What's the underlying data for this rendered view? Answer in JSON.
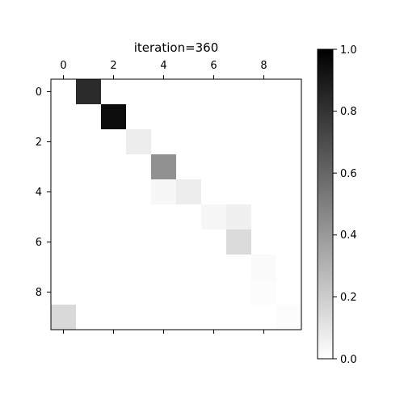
{
  "chart_data": [
    {
      "type": "heatmap",
      "title": "iteration=360",
      "xlabel": "",
      "ylabel": "",
      "x_ticks": [
        "0",
        "2",
        "4",
        "6",
        "8"
      ],
      "y_ticks": [
        "0",
        "2",
        "4",
        "6",
        "8"
      ],
      "rows": 10,
      "cols": 10,
      "colormap": "Greys",
      "vmin": 0.0,
      "vmax": 1.0,
      "x_axis_position": "top",
      "values": [
        [
          0,
          0.83,
          0,
          0,
          0,
          0,
          0,
          0,
          0,
          0
        ],
        [
          0,
          0,
          0.95,
          0,
          0,
          0,
          0,
          0,
          0,
          0
        ],
        [
          0,
          0,
          0,
          0.07,
          0,
          0,
          0,
          0,
          0,
          0
        ],
        [
          0,
          0,
          0,
          0,
          0.43,
          0,
          0,
          0,
          0,
          0
        ],
        [
          0,
          0,
          0,
          0,
          0.03,
          0.07,
          0,
          0,
          0,
          0
        ],
        [
          0,
          0,
          0,
          0,
          0,
          0,
          0.03,
          0.06,
          0,
          0
        ],
        [
          0,
          0,
          0,
          0,
          0,
          0,
          0,
          0.14,
          0,
          0
        ],
        [
          0,
          0,
          0,
          0,
          0,
          0,
          0,
          0,
          0.02,
          0
        ],
        [
          0,
          0,
          0,
          0,
          0,
          0,
          0,
          0,
          0.01,
          0
        ],
        [
          0.15,
          0,
          0,
          0,
          0,
          0,
          0,
          0,
          0,
          0.01
        ]
      ]
    },
    {
      "type": "colorbar",
      "range": [
        0.0,
        1.0
      ],
      "ticks": [
        "0.0",
        "0.2",
        "0.4",
        "0.6",
        "0.8",
        "1.0"
      ]
    }
  ]
}
